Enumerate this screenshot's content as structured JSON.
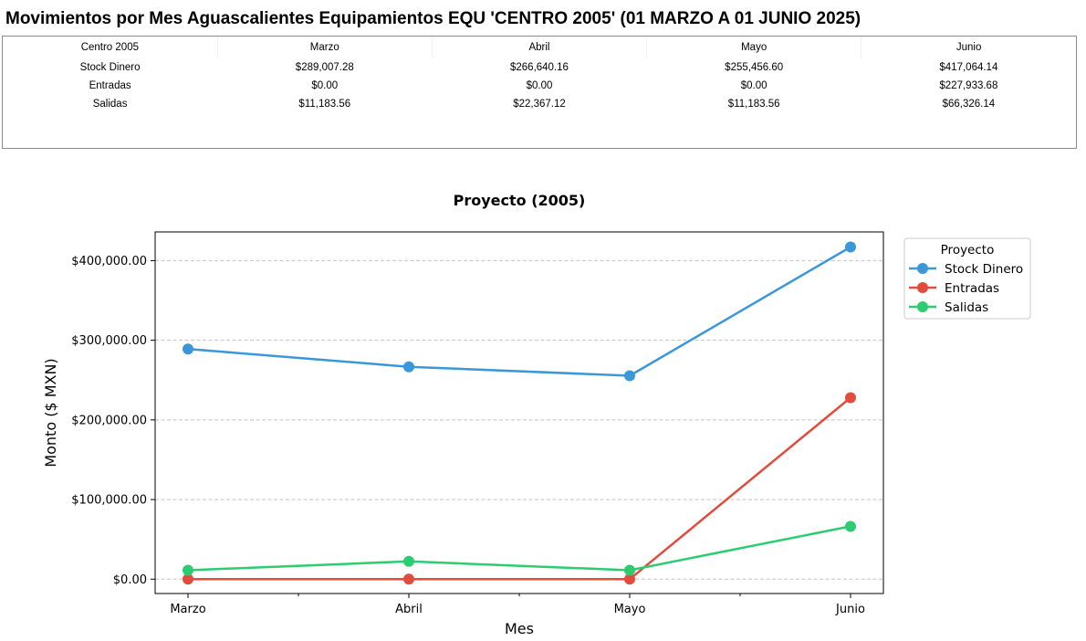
{
  "page": {
    "title": "Movimientos por Mes Aguascalientes Equipamientos EQU 'CENTRO 2005' (01 MARZO A 01 JUNIO 2025)"
  },
  "summary_table": {
    "headers": [
      "Centro 2005",
      "Marzo",
      "Abril",
      "Mayo",
      "Junio"
    ],
    "rows": [
      [
        "Stock Dinero",
        "$289,007.28",
        "$266,640.16",
        "$255,456.60",
        "$417,064.14"
      ],
      [
        "Entradas",
        "$0.00",
        "$0.00",
        "$0.00",
        "$227,933.68"
      ],
      [
        "Salidas",
        "$11,183.56",
        "$22,367.12",
        "$11,183.56",
        "$66,326.14"
      ]
    ]
  },
  "chart_data": {
    "type": "line",
    "title": "Proyecto (2005)",
    "xlabel": "Mes",
    "ylabel": "Monto ($ MXN)",
    "categories": [
      "Marzo",
      "Abril",
      "Mayo",
      "Junio"
    ],
    "ylim": [
      -18000,
      436000
    ],
    "yticks": [
      0,
      100000,
      200000,
      300000,
      400000
    ],
    "ytick_labels": [
      "$0.00",
      "$100,000.00",
      "$200,000.00",
      "$300,000.00",
      "$400,000.00"
    ],
    "grid": "horizontal dashed",
    "legend_title": "Proyecto",
    "legend_position": "outside-top-right",
    "series": [
      {
        "name": "Stock Dinero",
        "color": "#3a97d8",
        "values": [
          289007.28,
          266640.16,
          255456.6,
          417064.14
        ]
      },
      {
        "name": "Entradas",
        "color": "#e24c3c",
        "values": [
          0.0,
          0.0,
          0.0,
          227933.68
        ]
      },
      {
        "name": "Salidas",
        "color": "#2ecc71",
        "values": [
          11183.56,
          22367.12,
          11183.56,
          66326.14
        ]
      }
    ]
  }
}
